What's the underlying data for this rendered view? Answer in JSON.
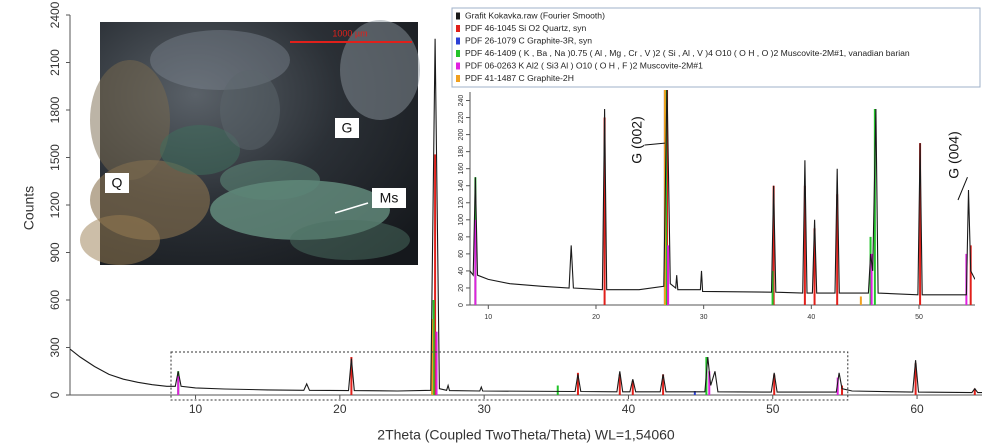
{
  "chart_data": [
    {
      "type": "line",
      "x_label": "2Theta (Coupled TwoTheta/Theta) WL=1,54060",
      "y_label": "Counts",
      "xlim": [
        1.3,
        64.5
      ],
      "ylim": [
        0,
        2400
      ],
      "xticks": [
        10,
        20,
        30,
        40,
        50,
        60
      ],
      "yticks": [
        0,
        300,
        600,
        900,
        1200,
        1500,
        1800,
        2100,
        2400
      ],
      "series": [
        {
          "type": "line",
          "color": "#1a1a1a",
          "x": [
            1.3,
            2,
            3,
            4,
            5,
            6,
            7,
            8,
            8.6,
            8.8,
            9.0,
            10,
            12,
            15,
            17.5,
            17.7,
            17.9,
            20.6,
            20.8,
            21.0,
            24,
            26.3,
            26.6,
            26.9,
            27.4,
            27.5,
            27.6,
            29.7,
            29.8,
            29.9,
            36.3,
            36.5,
            36.7,
            39.2,
            39.4,
            39.6,
            40.1,
            40.3,
            40.5,
            42.2,
            42.4,
            42.6,
            45.3,
            45.5,
            45.7,
            46.0,
            46.2,
            49.9,
            50.1,
            50.3,
            54.4,
            54.6,
            54.8,
            55.5,
            59.7,
            59.9,
            60.1,
            63.8,
            64.0,
            64.2,
            64.5
          ],
          "values": [
            290,
            240,
            180,
            130,
            100,
            80,
            65,
            55,
            55,
            150,
            55,
            45,
            38,
            32,
            30,
            70,
            30,
            28,
            230,
            28,
            25,
            30,
            2250,
            40,
            30,
            60,
            28,
            25,
            50,
            25,
            22,
            130,
            22,
            20,
            150,
            20,
            20,
            100,
            20,
            20,
            130,
            20,
            20,
            240,
            60,
            150,
            20,
            18,
            140,
            18,
            18,
            140,
            40,
            25,
            18,
            220,
            18,
            15,
            40,
            15,
            15
          ]
        },
        {
          "type": "stem",
          "color": "#e0201b",
          "x": [
            20.8,
            26.6,
            36.5,
            39.4,
            40.3,
            42.4,
            50.1,
            54.8,
            59.9,
            64.0
          ],
          "values": [
            240,
            1520,
            140,
            130,
            90,
            130,
            130,
            60,
            200,
            40
          ]
        },
        {
          "type": "stem",
          "color": "#2a3fd6",
          "x": [
            26.4,
            44.6
          ],
          "values": [
            300,
            25
          ]
        },
        {
          "type": "stem",
          "color": "#22c32a",
          "x": [
            8.8,
            26.5,
            35.1,
            45.4
          ],
          "values": [
            150,
            600,
            60,
            240
          ]
        },
        {
          "type": "stem",
          "color": "#e020e0",
          "x": [
            8.8,
            26.7,
            45.6,
            54.5
          ],
          "values": [
            120,
            400,
            150,
            110
          ]
        },
        {
          "type": "stem",
          "color": "#f0a020",
          "x": [
            26.4
          ],
          "values": [
            480
          ]
        }
      ]
    },
    {
      "type": "line",
      "xlim": [
        8.3,
        55.2
      ],
      "ylim": [
        0,
        250
      ],
      "xticks": [
        10,
        20,
        30,
        40,
        50
      ],
      "yticks": [
        0,
        20,
        40,
        60,
        80,
        100,
        120,
        140,
        160,
        180,
        200,
        220,
        240
      ],
      "annotations": [
        "G (002)",
        "G (004)"
      ],
      "legend": "top-right",
      "series": [
        {
          "name": "Grafit Kokavka.raw (Fourier Smooth)",
          "type": "line",
          "color": "#1a1a1a",
          "x": [
            8.3,
            8.6,
            8.8,
            9.0,
            10,
            12,
            15,
            17.5,
            17.7,
            17.9,
            20.6,
            20.8,
            21.0,
            24,
            26.3,
            26.6,
            26.9,
            27.4,
            27.5,
            27.6,
            29.7,
            29.8,
            29.9,
            36.3,
            36.5,
            36.7,
            39.2,
            39.4,
            39.6,
            40.1,
            40.3,
            40.5,
            42.2,
            42.4,
            42.6,
            45.3,
            45.5,
            45.7,
            46.0,
            46.2,
            49.9,
            50.1,
            50.3,
            54.4,
            54.6,
            54.8,
            55.2
          ],
          "values": [
            40,
            35,
            150,
            35,
            30,
            25,
            22,
            20,
            70,
            20,
            18,
            230,
            18,
            18,
            22,
            260,
            25,
            20,
            35,
            18,
            18,
            40,
            16,
            15,
            140,
            15,
            14,
            170,
            14,
            14,
            100,
            14,
            14,
            160,
            14,
            14,
            60,
            40,
            230,
            14,
            12,
            190,
            12,
            12,
            135,
            40,
            30
          ]
        },
        {
          "name": "PDF 46-1045 Si O2 Quartz, syn",
          "type": "stem",
          "color": "#e0201b",
          "x": [
            20.8,
            26.6,
            36.5,
            39.4,
            40.3,
            42.4,
            50.1,
            54.8
          ],
          "values": [
            220,
            260,
            140,
            140,
            90,
            130,
            190,
            70
          ]
        },
        {
          "name": "PDF 26-1079 C Graphite-3R, syn",
          "type": "stem",
          "color": "#2a3fd6",
          "x": [
            26.4
          ],
          "values": [
            260
          ]
        },
        {
          "name": "PDF 46-1409 ( K , Ba , Na )0.75 ( Al , Mg , Cr , V )2 ( Si , Al , V )4 O10 ( O H , O )2 Muscovite-2M#1, vanadian barian",
          "type": "stem",
          "color": "#22c32a",
          "x": [
            8.8,
            26.5,
            36.4,
            45.5,
            45.9
          ],
          "values": [
            150,
            260,
            40,
            80,
            230
          ]
        },
        {
          "name": "PDF 06-0263 K Al2 ( Si3 Al ) O10 ( O H , F )2 Muscovite-2M#1",
          "type": "stem",
          "color": "#e020e0",
          "x": [
            8.8,
            26.7,
            45.6,
            54.4
          ],
          "values": [
            100,
            70,
            60,
            60
          ]
        },
        {
          "name": "PDF 41-1487 C Graphite-2H",
          "type": "stem",
          "color": "#f0a020",
          "x": [
            26.4,
            44.6
          ],
          "values": [
            260,
            10
          ]
        }
      ]
    }
  ],
  "photo": {
    "labels": [
      "Q",
      "G",
      "Ms"
    ],
    "scale_bar": "1000 µm"
  }
}
